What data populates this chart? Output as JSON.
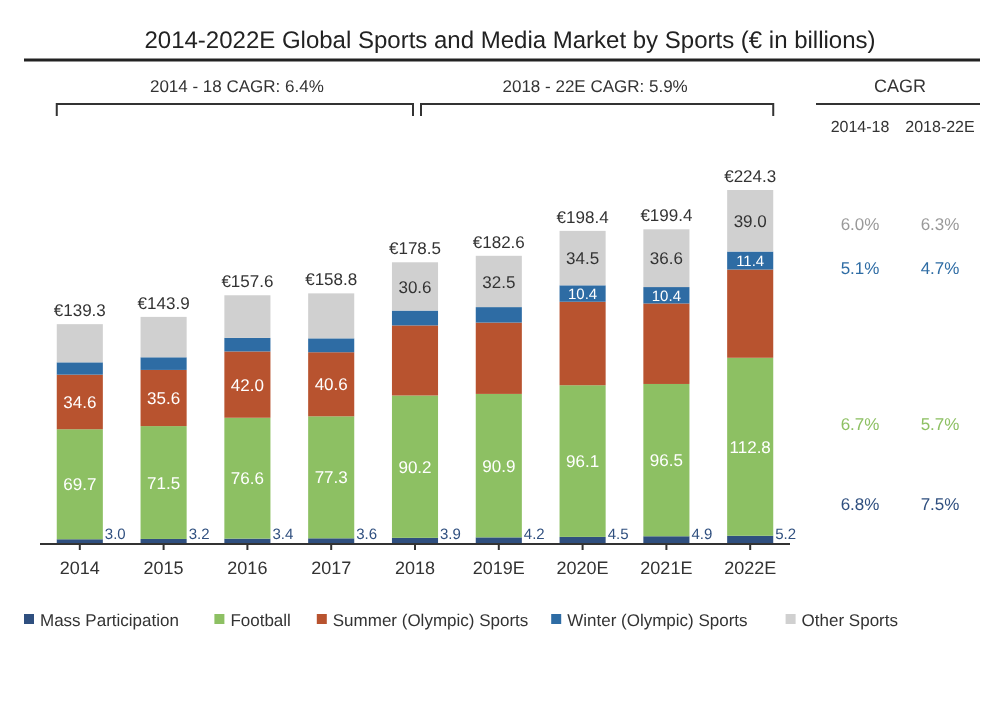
{
  "chart_data": {
    "type": "bar",
    "stacked": true,
    "title": "2014-2022E Global Sports and Media Market by Sports (€ in billions)",
    "categories": [
      "2014",
      "2015",
      "2016",
      "2017",
      "2018",
      "2019E",
      "2020E",
      "2021E",
      "2022E"
    ],
    "series": [
      {
        "name": "Mass Participation",
        "color": "#2f4f7f",
        "values": [
          3.0,
          3.2,
          3.4,
          3.6,
          3.9,
          4.2,
          4.5,
          4.9,
          5.2
        ],
        "value_labels": [
          "3.0",
          "3.2",
          "3.4",
          "3.6",
          "3.9",
          "4.2",
          "4.5",
          "4.9",
          "5.2"
        ]
      },
      {
        "name": "Football",
        "color": "#8dc063",
        "values": [
          69.7,
          71.5,
          76.6,
          77.3,
          90.2,
          90.9,
          96.1,
          96.5,
          112.8
        ],
        "value_labels": [
          "69.7",
          "71.5",
          "76.6",
          "77.3",
          "90.2",
          "90.9",
          "96.1",
          "96.5",
          "112.8"
        ]
      },
      {
        "name": "Summer (Olympic) Sports",
        "color": "#b8532f",
        "values": [
          34.6,
          35.6,
          42.0,
          40.6,
          44.4,
          45.2,
          52.9,
          51.0,
          55.9
        ],
        "value_labels": [
          "34.6",
          "35.6",
          "42.0",
          "40.6",
          null,
          null,
          null,
          null,
          null
        ]
      },
      {
        "name": "Winter (Olympic) Sports",
        "color": "#2e6ca4",
        "values": [
          7.8,
          8.0,
          8.6,
          8.8,
          9.4,
          9.8,
          10.4,
          10.4,
          11.4
        ],
        "value_labels": [
          null,
          null,
          null,
          null,
          null,
          null,
          "10.4",
          "10.4",
          "11.4"
        ]
      },
      {
        "name": "Other Sports",
        "color": "#d0d0d0",
        "values": [
          24.2,
          25.6,
          27.0,
          28.5,
          30.6,
          32.5,
          34.5,
          36.6,
          39.0
        ],
        "value_labels": [
          null,
          null,
          null,
          null,
          "30.6",
          "32.5",
          "34.5",
          "36.6",
          "39.0"
        ]
      }
    ],
    "totals": [
      "€139.3",
      "€143.9",
      "€157.6",
      "€158.8",
      "€178.5",
      "€182.6",
      "€198.4",
      "€199.4",
      "€224.3"
    ],
    "annotations": [
      "2014 - 18 CAGR: 6.4%",
      "2018 - 22E CAGR: 5.9%",
      "CAGR",
      "2014-18",
      "2018-22E",
      "6.0%",
      "6.3%",
      "5.1%",
      "4.7%",
      "6.7%",
      "5.7%",
      "6.8%",
      "7.5%"
    ],
    "legend": "bottom"
  }
}
